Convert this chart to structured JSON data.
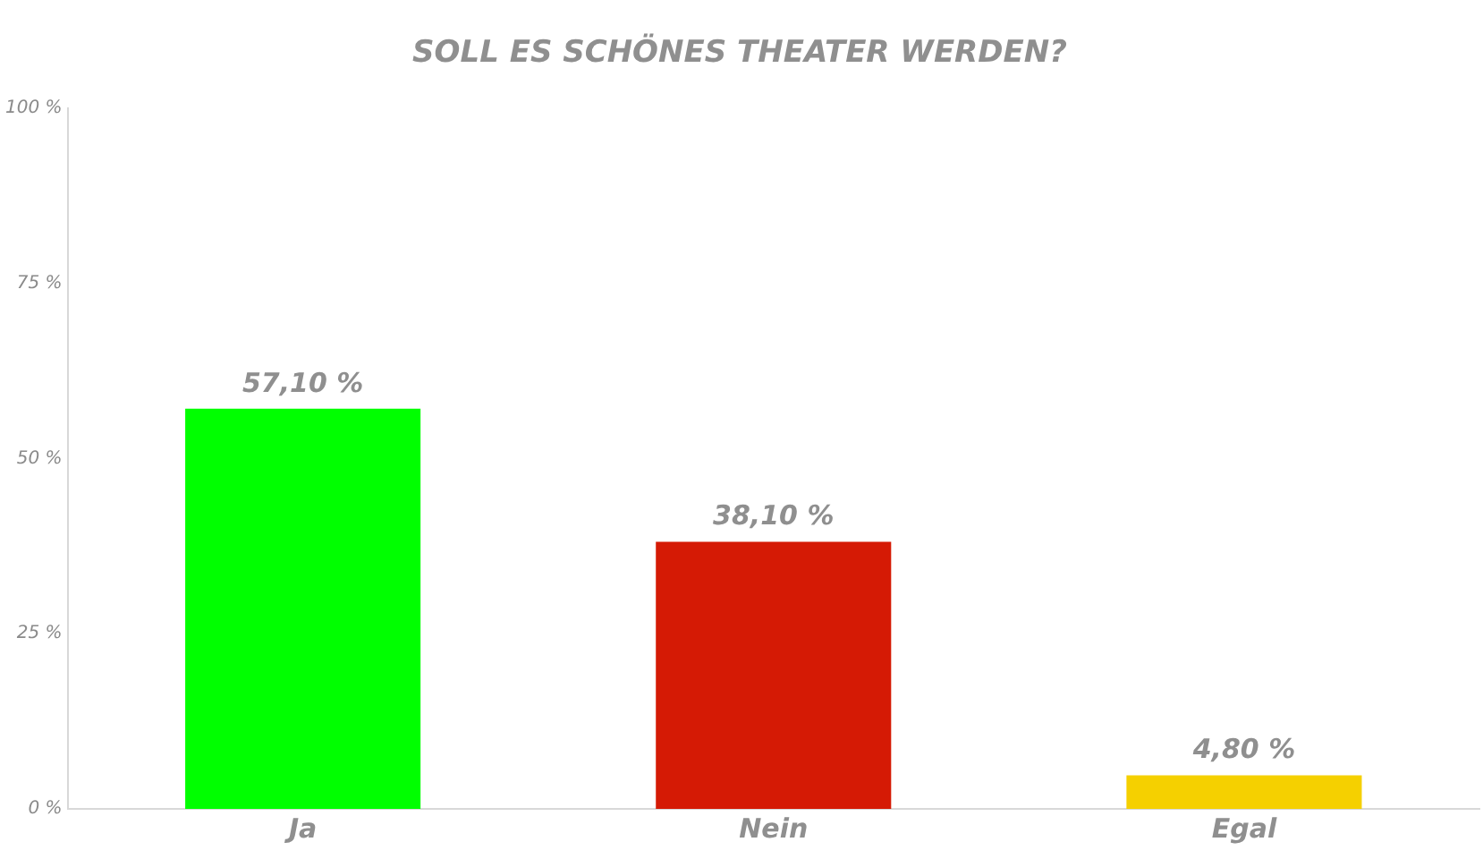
{
  "chart_data": {
    "type": "bar",
    "title": "SOLL ES SCHÖNES THEATER WERDEN?",
    "categories": [
      "Ja",
      "Nein",
      "Egal"
    ],
    "values": [
      57.1,
      38.1,
      4.8
    ],
    "colors": [
      "#00ff00",
      "#d51a05",
      "#f5d000"
    ],
    "value_labels": [
      "57,10 %",
      "38,10 %",
      "4,80 %"
    ],
    "ylim": [
      0,
      100
    ],
    "yticks": [
      {
        "value": 0,
        "label": "0 %"
      },
      {
        "value": 25,
        "label": "25 %"
      },
      {
        "value": 50,
        "label": "50 %"
      },
      {
        "value": 75,
        "label": "75 %"
      },
      {
        "value": 100,
        "label": "100 %"
      }
    ],
    "grid": false,
    "legend": false
  }
}
